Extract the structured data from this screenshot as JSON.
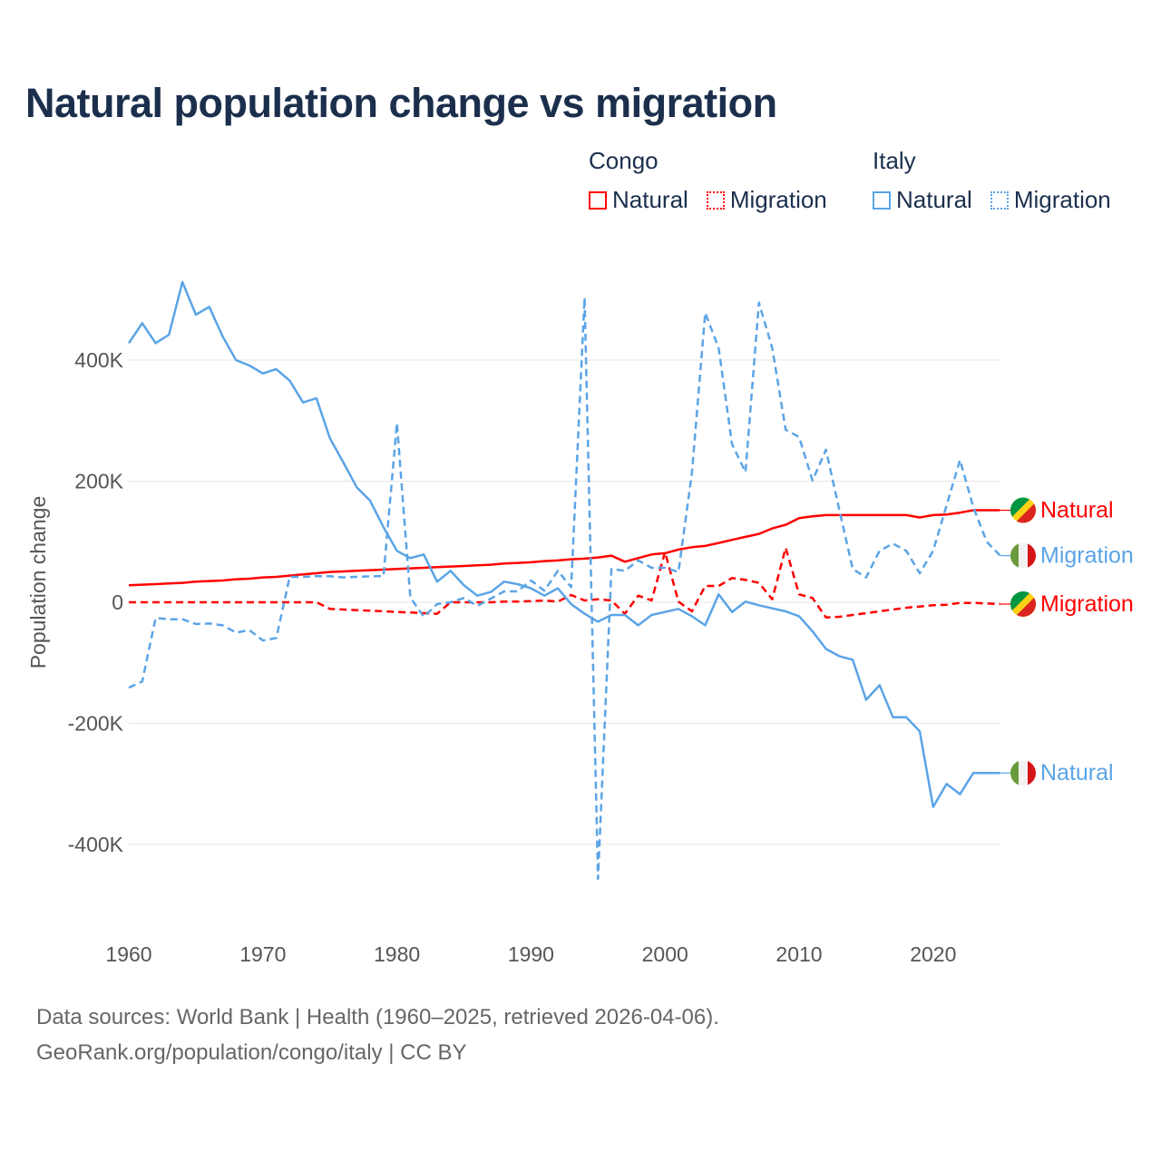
{
  "chart_data": {
    "type": "line",
    "title": "Natural population change vs migration",
    "ylabel": "Population change",
    "xlabel": "",
    "ylim": [
      -460,
      530
    ],
    "xlim": [
      1960,
      2025
    ],
    "y_ticks": [
      {
        "v": 400,
        "label": "400K"
      },
      {
        "v": 200,
        "label": "200K"
      },
      {
        "v": 0,
        "label": "0"
      },
      {
        "v": -200,
        "label": "-200K"
      },
      {
        "v": -400,
        "label": "-400K"
      }
    ],
    "x_ticks": [
      1960,
      1970,
      1980,
      1990,
      2000,
      2010,
      2020
    ],
    "units": "thousands",
    "grid": true,
    "legend": {
      "placement": "top-right",
      "groups": [
        {
          "name": "Congo",
          "items": [
            "Natural",
            "Migration"
          ],
          "color": "#ff0000"
        },
        {
          "name": "Italy",
          "items": [
            "Natural",
            "Migration"
          ],
          "color": "#5ba4e6"
        }
      ]
    },
    "x_start": 1960,
    "series": [
      {
        "name": "Congo Natural",
        "label": "Natural",
        "country": "Congo",
        "color": "#ff0000",
        "dashed": false,
        "values": [
          28,
          29,
          30,
          31,
          32,
          34,
          35,
          36,
          38,
          39,
          41,
          42,
          44,
          46,
          48,
          50,
          51,
          52,
          53,
          54,
          55,
          56,
          57,
          58,
          59,
          60,
          61,
          62,
          64,
          65,
          66,
          68,
          69,
          71,
          72,
          74,
          77,
          67,
          73,
          79,
          81,
          87,
          91,
          93,
          98,
          103,
          108,
          113,
          122,
          128,
          139,
          142,
          144,
          144,
          144,
          144,
          144,
          144,
          144,
          140,
          144,
          145,
          148,
          152,
          152,
          152
        ]
      },
      {
        "name": "Congo Migration",
        "label": "Migration",
        "country": "Congo",
        "color": "#ff0000",
        "dashed": true,
        "values": [
          0,
          0,
          0,
          0,
          0,
          0,
          0,
          0,
          0,
          0,
          0,
          0,
          0,
          0,
          0,
          -11,
          -12,
          -13,
          -14,
          -15,
          -16,
          -17,
          -18,
          -19,
          0,
          0,
          0,
          0,
          1,
          1,
          2,
          3,
          1,
          12,
          3,
          5,
          3,
          -19,
          11,
          3,
          83,
          1,
          -15,
          27,
          27,
          40,
          37,
          32,
          5,
          90,
          13,
          7,
          -25,
          -24,
          -21,
          -18,
          -15,
          -12,
          -9,
          -7,
          -5,
          -4,
          -1,
          -1,
          -2,
          -3
        ]
      },
      {
        "name": "Italy Natural",
        "label": "Natural",
        "country": "Italy",
        "color": "#5ba4e6",
        "dashed": false,
        "values": [
          428,
          461,
          428,
          442,
          529,
          475,
          488,
          439,
          400,
          391,
          378,
          385,
          366,
          330,
          337,
          271,
          231,
          190,
          168,
          124,
          85,
          73,
          79,
          34,
          52,
          28,
          11,
          17,
          34,
          30,
          23,
          11,
          23,
          -3,
          -19,
          -32,
          -21,
          -21,
          -38,
          -21,
          -16,
          -11,
          -23,
          -38,
          13,
          -16,
          1,
          -5,
          -10,
          -15,
          -23,
          -48,
          -77,
          -89,
          -95,
          -161,
          -137,
          -190,
          -190,
          -213,
          -338,
          -300,
          -317,
          -282,
          -282,
          -282
        ]
      },
      {
        "name": "Italy Migration",
        "label": "Migration",
        "country": "Italy",
        "color": "#5ba4e6",
        "dashed": true,
        "values": [
          -141,
          -131,
          -26,
          -28,
          -28,
          -36,
          -35,
          -38,
          -50,
          -46,
          -63,
          -59,
          42,
          42,
          43,
          43,
          41,
          42,
          43,
          43,
          296,
          8,
          -24,
          -3,
          0,
          7,
          -6,
          6,
          18,
          18,
          36,
          19,
          52,
          25,
          503,
          -457,
          55,
          52,
          69,
          57,
          57,
          50,
          213,
          478,
          420,
          261,
          215,
          495,
          420,
          285,
          273,
          201,
          252,
          153,
          55,
          41,
          85,
          97,
          85,
          48,
          85,
          160,
          235,
          157,
          100,
          77
        ]
      }
    ]
  },
  "footer": {
    "line1": "Data sources: World Bank | Health (1960–2025, retrieved 2026-04-06).",
    "line2": "GeoRank.org/population/congo/italy | CC BY"
  }
}
